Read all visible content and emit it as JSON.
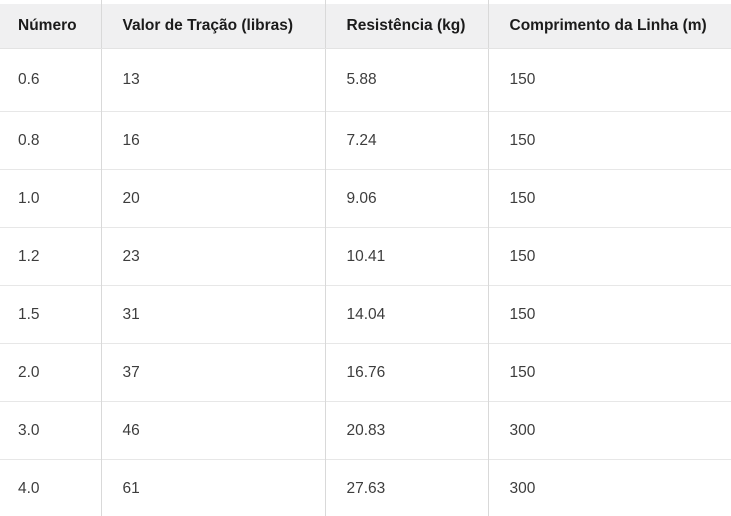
{
  "table": {
    "columns": [
      "Número",
      "Valor de Tração (libras)",
      "Resistência (kg)",
      "Comprimento da Linha (m)"
    ],
    "rows": [
      [
        "0.6",
        "13",
        "5.88",
        "150"
      ],
      [
        "0.8",
        "16",
        "7.24",
        "150"
      ],
      [
        "1.0",
        "20",
        "9.06",
        "150"
      ],
      [
        "1.2",
        "23",
        "10.41",
        "150"
      ],
      [
        "1.5",
        "31",
        "14.04",
        "150"
      ],
      [
        "2.0",
        "37",
        "16.76",
        "150"
      ],
      [
        "3.0",
        "46",
        "20.83",
        "300"
      ],
      [
        "4.0",
        "61",
        "27.63",
        "300"
      ]
    ]
  },
  "colors": {
    "header_bg": "#f0f0f1",
    "header_text": "#1b1b1b",
    "body_text": "#3d3d3d",
    "column_border": "#d9d9d9",
    "row_border": "#e7e7e7"
  }
}
